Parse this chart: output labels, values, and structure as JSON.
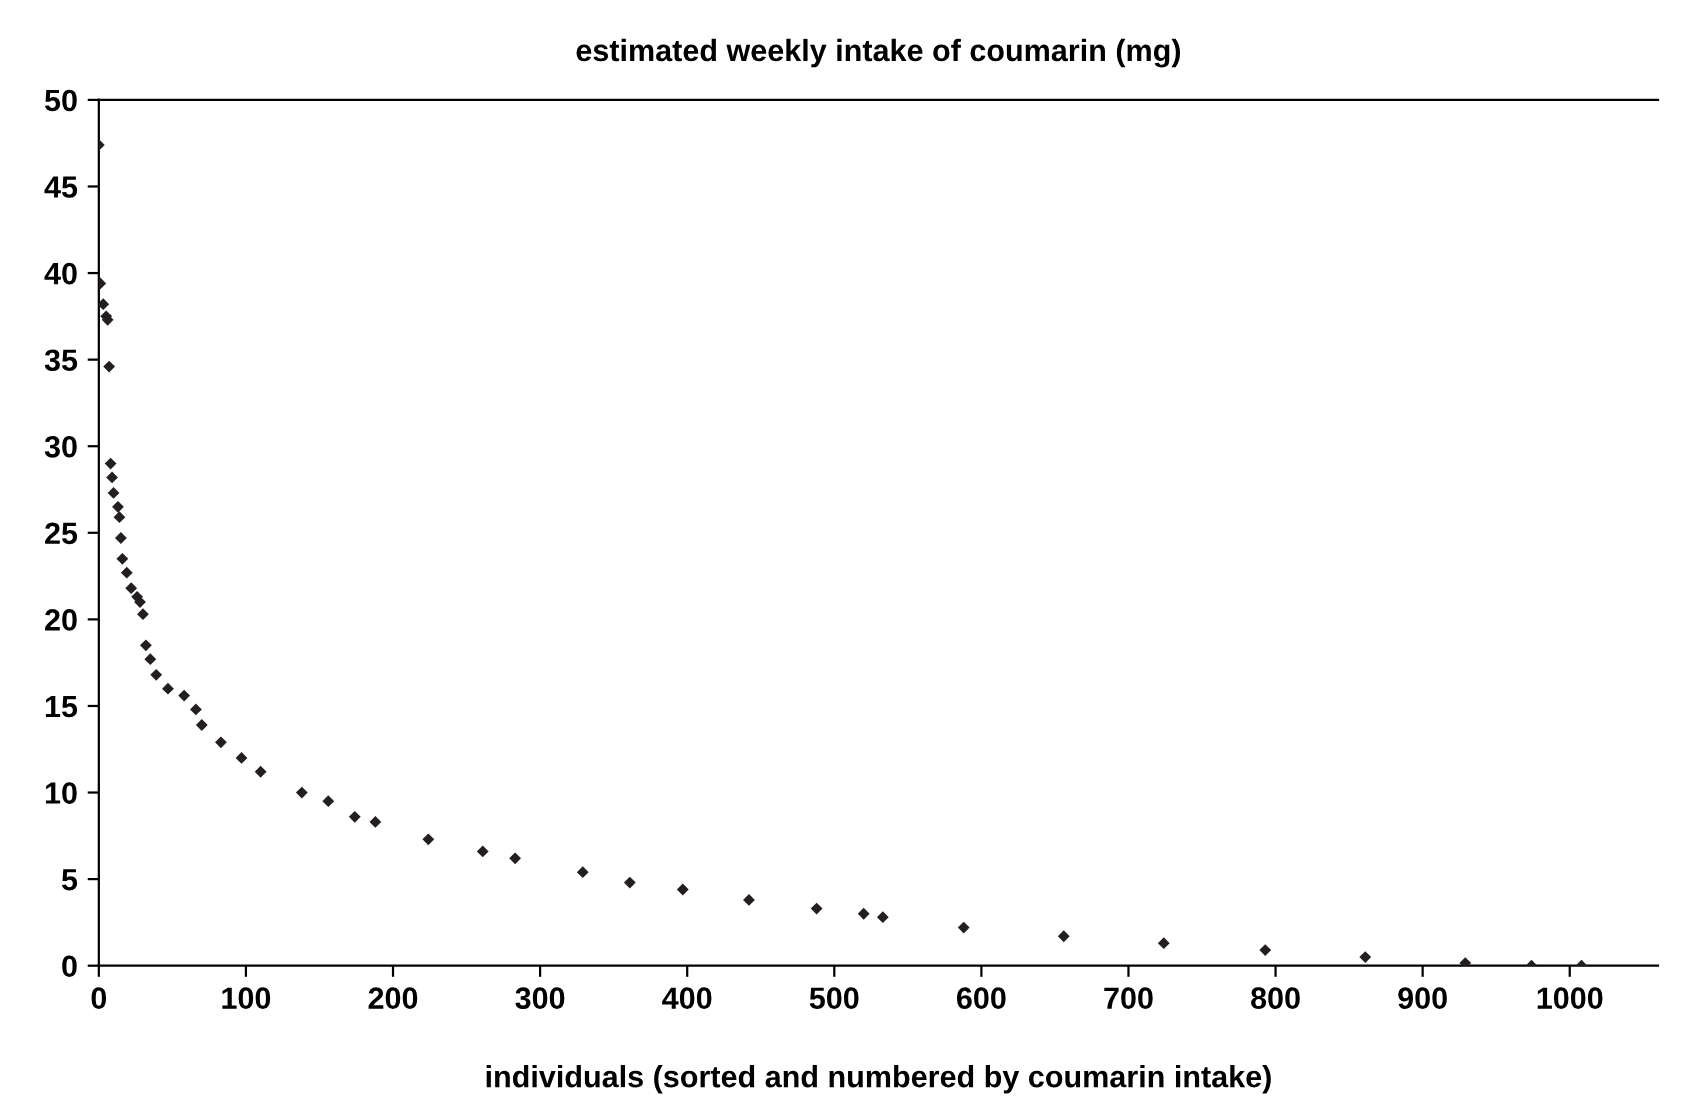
{
  "chart_data": {
    "type": "scatter",
    "title": "estimated weekly intake of coumarin (mg)",
    "xlabel": "individuals (sorted and numbered by coumarin intake)",
    "x": [
      0,
      1,
      3,
      5,
      6,
      7,
      8,
      9,
      10,
      13,
      14,
      15,
      16,
      19,
      22,
      26,
      28,
      30,
      32,
      35,
      39,
      47,
      58,
      66,
      70,
      83,
      97,
      110,
      138,
      156,
      174,
      188,
      224,
      261,
      283,
      329,
      361,
      397,
      442,
      488,
      520,
      533,
      588,
      656,
      724,
      793,
      861,
      929,
      974,
      1008
    ],
    "values": [
      47.4,
      39.4,
      38.2,
      37.5,
      37.3,
      34.6,
      29.0,
      28.2,
      27.3,
      26.5,
      25.9,
      24.7,
      23.5,
      22.7,
      21.8,
      21.3,
      21.0,
      20.3,
      18.5,
      17.7,
      16.8,
      16.0,
      15.6,
      14.8,
      13.9,
      12.9,
      12.0,
      11.2,
      10.0,
      9.5,
      8.6,
      8.3,
      7.3,
      6.6,
      6.2,
      5.4,
      4.8,
      4.4,
      3.8,
      3.3,
      3.0,
      2.8,
      2.2,
      1.7,
      1.3,
      0.9,
      0.5,
      0.15,
      0,
      0
    ],
    "color": "#231f20",
    "marker": "diamond",
    "grid": false,
    "legend": false,
    "xlim": [
      0,
      1060
    ],
    "xticks": [
      0,
      100,
      200,
      300,
      400,
      500,
      600,
      700,
      800,
      900,
      1000
    ],
    "ylim": [
      0,
      50
    ],
    "yticks": [
      0,
      5,
      10,
      15,
      20,
      25,
      30,
      35,
      40,
      45,
      50
    ]
  }
}
